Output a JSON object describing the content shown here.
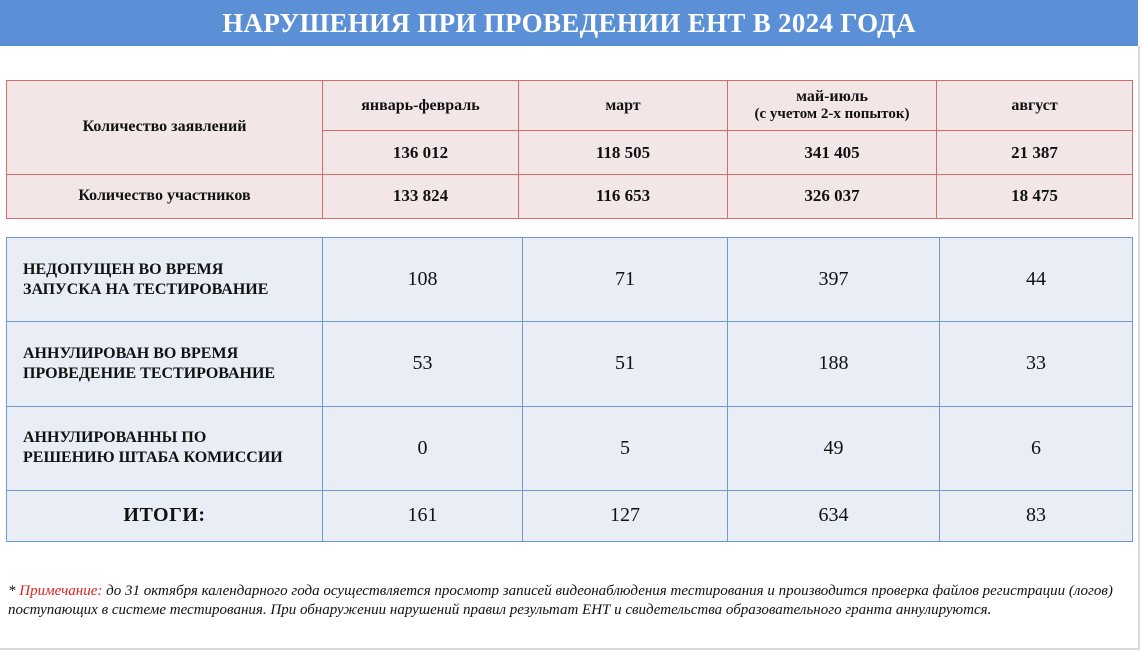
{
  "title": "НАРУШЕНИЯ ПРИ ПРОВЕДЕНИИ ЕНТ В 2024 ГОДА",
  "top_table": {
    "applications_label": "Количество заявлений",
    "participants_label": "Количество участников",
    "periods": [
      {
        "label": "январь-февраль",
        "sublabel": ""
      },
      {
        "label": "март",
        "sublabel": ""
      },
      {
        "label": "май-июль",
        "sublabel": "(с учетом 2-х попыток)"
      },
      {
        "label": "август",
        "sublabel": ""
      }
    ],
    "applications": [
      "136 012",
      "118 505",
      "341 405",
      "21 387"
    ],
    "participants": [
      "133 824",
      "116 653",
      "326 037",
      "18 475"
    ]
  },
  "violations_table": {
    "rows": [
      {
        "label_line1": "НЕДОПУЩЕН ВО ВРЕМЯ",
        "label_line2": "ЗАПУСКА НА ТЕСТИРОВАНИЕ",
        "values": [
          "108",
          "71",
          "397",
          "44"
        ]
      },
      {
        "label_line1": "АННУЛИРОВАН ВО ВРЕМЯ",
        "label_line2": "ПРОВЕДЕНИЕ ТЕСТИРОВАНИЕ",
        "values": [
          "53",
          "51",
          "188",
          "33"
        ]
      },
      {
        "label_line1": "АННУЛИРОВАННЫ ПО",
        "label_line2": "РЕШЕНИЮ ШТАБА КОМИССИИ",
        "values": [
          "0",
          "5",
          "49",
          "6"
        ]
      }
    ],
    "total": {
      "label": "ИТОГИ:",
      "values": [
        "161",
        "127",
        "634",
        "83"
      ]
    }
  },
  "note": {
    "prefix": "* ",
    "label": "Примечание:",
    "text": " до 31 октября календарного года осуществляется просмотр записей видеонаблюдения тестирования и производится проверка файлов регистрации (логов) поступающих в системе тестирования. При обнаружении нарушений правил результат ЕНТ и свидетельства образовательного гранта аннулируются."
  },
  "colors": {
    "title_bg": "#5b8fd6",
    "top_table_bg": "#f3e6e6",
    "top_table_border": "#d96a6a",
    "bottom_table_bg": "#e9eef6",
    "bottom_table_border": "#6f99d3",
    "note_label": "#e02020"
  }
}
